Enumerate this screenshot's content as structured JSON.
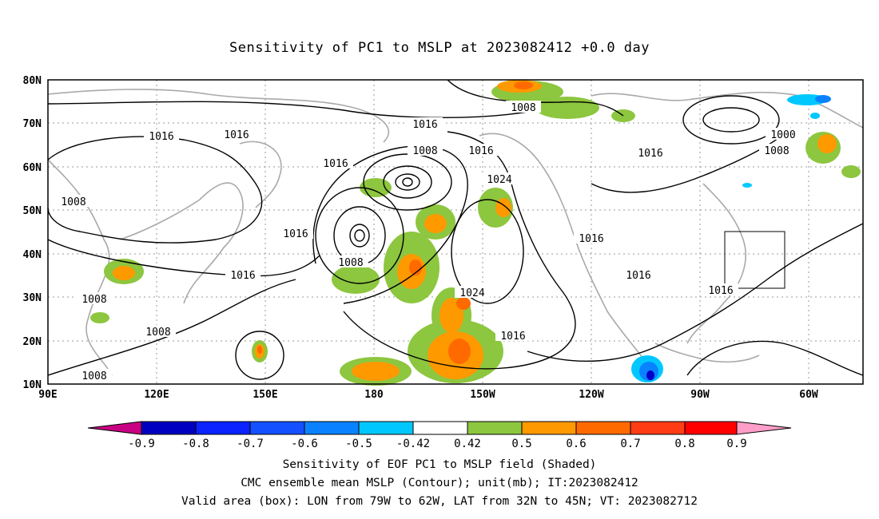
{
  "title": "Sensitivity of PC1 to MSLP at 2023082412 +0.0 day",
  "map": {
    "lat_labels": [
      "80N",
      "70N",
      "60N",
      "50N",
      "40N",
      "30N",
      "20N",
      "10N"
    ],
    "lon_labels": [
      "90E",
      "120E",
      "150E",
      "180",
      "150W",
      "120W",
      "90W",
      "60W"
    ],
    "contour_labels": [
      {
        "text": "1016"
      },
      {
        "text": "1016"
      },
      {
        "text": "1008"
      },
      {
        "text": "1016"
      },
      {
        "text": "1016"
      },
      {
        "text": "1008"
      },
      {
        "text": "1016"
      },
      {
        "text": "1008"
      },
      {
        "text": "1016"
      },
      {
        "text": "1000"
      },
      {
        "text": "1008"
      },
      {
        "text": "1024"
      },
      {
        "text": "1016"
      },
      {
        "text": "1016"
      },
      {
        "text": "1008"
      },
      {
        "text": "1016"
      },
      {
        "text": "1024"
      },
      {
        "text": "1016"
      },
      {
        "text": "1008"
      },
      {
        "text": "1008"
      },
      {
        "text": "1008"
      },
      {
        "text": "1016"
      },
      {
        "text": "1016"
      }
    ],
    "valid_box": {
      "lon": [
        -79,
        -62
      ],
      "lat": [
        32,
        45
      ]
    },
    "colors": {
      "coast": "#a9a9a9",
      "contour": "#000000",
      "pos1": "#8dc63f",
      "pos2": "#ff9900",
      "pos3": "#ff6a00",
      "pos4": "#ff3300",
      "neg1": "#00c8ff",
      "neg2": "#0078ff",
      "neg3": "#0000c8"
    }
  },
  "colorbar": {
    "labels": [
      "-0.9",
      "-0.8",
      "-0.7",
      "-0.6",
      "-0.5",
      "-0.42",
      "0.42",
      "0.5",
      "0.6",
      "0.7",
      "0.8",
      "0.9"
    ],
    "colors": [
      "#0000c0",
      "#0a23ff",
      "#1450ff",
      "#0a82ff",
      "#00c8ff",
      "#ffffff",
      "#8dc63f",
      "#ff9900",
      "#ff6a00",
      "#ff3c14",
      "#ff0000"
    ],
    "low_arrow_color": "#c80082",
    "high_arrow_color": "#ff9ec8"
  },
  "captions": {
    "line1": "Sensitivity of EOF PC1 to MSLP field (Shaded)",
    "line2": "CMC ensemble mean MSLP (Contour); unit(mb); IT:2023082412",
    "line3": "Valid area (box): LON from 79W to 62W, LAT from 32N to 45N; VT: 2023082712"
  }
}
